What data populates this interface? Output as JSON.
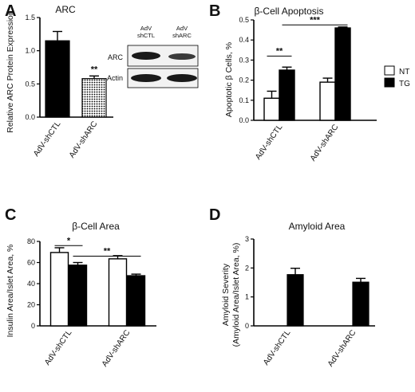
{
  "panels": [
    {
      "id": "A",
      "title": "ARC",
      "ylabel": "Relative ARC Protein Expression",
      "significance": "**",
      "western_blot": {
        "lanes": [
          "AdV shCTL",
          "AdV shARC"
        ],
        "rows": [
          "ARC",
          "Actin"
        ]
      }
    },
    {
      "id": "B",
      "title": "β-Cell Apoptosis",
      "ylabel": "Apoptotic β Cells, %",
      "significance": [
        "**",
        "***"
      ]
    },
    {
      "id": "C",
      "title": "β-Cell Area",
      "ylabel": "Insulin Area/Islet Area, %",
      "significance": [
        "*",
        "**"
      ]
    },
    {
      "id": "D",
      "title": "Amyloid Area",
      "ylabel_lines": [
        "Amyloid Severity",
        "(Amyloid Area/Islet Area, %)"
      ]
    }
  ],
  "legend": [
    {
      "name": "NT",
      "color": "#ffffff"
    },
    {
      "name": "TG",
      "color": "#000000"
    }
  ],
  "colors": {
    "NT": "#ffffff",
    "TG": "#000000",
    "shARC_pattern": "dotted",
    "stroke": "#000000"
  },
  "chart_data": [
    {
      "panel": "A",
      "type": "bar",
      "title": "ARC",
      "ylabel": "Relative ARC Protein Expression",
      "categories": [
        "AdV-shCTL",
        "AdV-shARC"
      ],
      "values": [
        1.15,
        0.58
      ],
      "errors": [
        0.14,
        0.04
      ],
      "fills": [
        "solid",
        "dotted"
      ],
      "ylim": [
        0,
        1.5
      ],
      "yticks": [
        "0.0",
        "0.5",
        "1.0",
        "1.5"
      ],
      "annotations": [
        {
          "category": "AdV-shARC",
          "label": "**"
        }
      ]
    },
    {
      "panel": "B",
      "type": "bar",
      "title": "β-Cell Apoptosis",
      "ylabel": "Apoptotic β Cells, %",
      "categories": [
        "AdV-shCTL",
        "AdV-shARC"
      ],
      "series": [
        {
          "name": "NT",
          "values": [
            0.11,
            0.19
          ],
          "errors": [
            0.035,
            0.02
          ]
        },
        {
          "name": "TG",
          "values": [
            0.25,
            0.46
          ],
          "errors": [
            0.015,
            0.005
          ]
        }
      ],
      "ylim": [
        0,
        0.5
      ],
      "yticks": [
        "0.0",
        "0.1",
        "0.2",
        "0.3",
        "0.4",
        "0.5"
      ],
      "annotations": [
        {
          "from": [
            "AdV-shCTL",
            "NT"
          ],
          "to": [
            "AdV-shCTL",
            "TG"
          ],
          "label": "**",
          "y": 0.32
        },
        {
          "from": [
            "AdV-shCTL",
            "TG"
          ],
          "to": [
            "AdV-shARC",
            "TG"
          ],
          "label": "***",
          "y": 0.475
        }
      ],
      "legend": "right"
    },
    {
      "panel": "C",
      "type": "bar",
      "title": "β-Cell Area",
      "ylabel": "Insulin Area/Islet Area, %",
      "categories": [
        "AdV-shCTL",
        "AdV-shARC"
      ],
      "series": [
        {
          "name": "NT",
          "values": [
            69.5,
            63.5
          ],
          "errors": [
            4.5,
            3.0
          ]
        },
        {
          "name": "TG",
          "values": [
            57.5,
            47.5
          ],
          "errors": [
            2.5,
            1.5
          ]
        }
      ],
      "ylim": [
        0,
        80
      ],
      "yticks": [
        "0",
        "20",
        "40",
        "60",
        "80"
      ],
      "annotations": [
        {
          "from": [
            "AdV-shCTL",
            "NT"
          ],
          "to": [
            "AdV-shCTL",
            "TG"
          ],
          "label": "*",
          "y": 76
        },
        {
          "from": [
            "AdV-shCTL",
            "TG"
          ],
          "to": [
            "AdV-shARC",
            "TG"
          ],
          "label": "**",
          "y": 66
        }
      ]
    },
    {
      "panel": "D",
      "type": "bar",
      "title": "Amyloid Area",
      "ylabel": "Amyloid Severity (Amyloid Area/Islet Area, %)",
      "categories": [
        "AdV-shCTL",
        "AdV-shARC"
      ],
      "series": [
        {
          "name": "TG",
          "values": [
            1.77,
            1.51
          ],
          "errors": [
            0.22,
            0.13
          ]
        }
      ],
      "ylim": [
        0,
        3
      ],
      "yticks": [
        "0",
        "1",
        "2",
        "3"
      ]
    }
  ]
}
